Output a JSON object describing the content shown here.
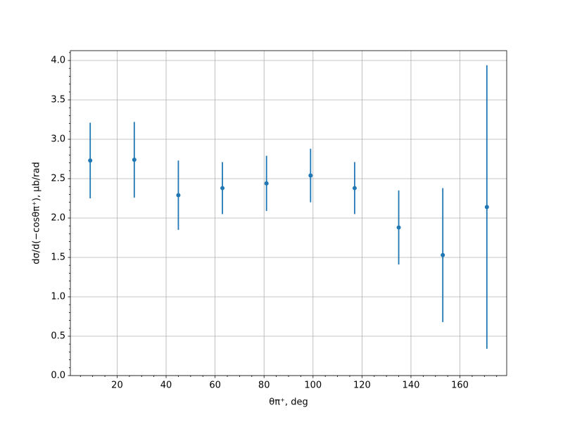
{
  "chart_data": {
    "type": "errorbar",
    "x_label": "θπ⁺, deg",
    "y_label": "dσ/d(−cosθπ⁺), μb/rad",
    "x": [
      9,
      27,
      45,
      63,
      81,
      99,
      117,
      135,
      153,
      171
    ],
    "series": [
      {
        "color": "#1f77b4",
        "values": [
          2.73,
          2.74,
          2.29,
          2.38,
          2.44,
          2.54,
          2.38,
          1.88,
          1.53,
          2.14
        ],
        "errors": [
          0.48,
          0.48,
          0.44,
          0.33,
          0.35,
          0.34,
          0.33,
          0.47,
          0.85,
          1.8
        ]
      }
    ],
    "xlim": [
      0.9,
      179.1
    ],
    "ylim": [
      0,
      4.125
    ],
    "xticks": [
      20,
      40,
      60,
      80,
      100,
      120,
      140,
      160
    ],
    "yticks": [
      {
        "value": 0,
        "label": "0.0"
      },
      0.5,
      {
        "value": 1,
        "label": "1.0"
      },
      1.5,
      {
        "value": 2,
        "label": "2.0"
      },
      2.5,
      {
        "value": 3,
        "label": "3.0"
      },
      3.5,
      {
        "value": 4,
        "label": "4.0"
      }
    ],
    "xminorticks": [
      5,
      10,
      15,
      25,
      30,
      35,
      45,
      50,
      55,
      65,
      70,
      75,
      85,
      90,
      95,
      105,
      110,
      115,
      125,
      130,
      135,
      145,
      150,
      155,
      165,
      170,
      175
    ],
    "yminorticks": [
      0.1,
      0.2,
      0.3,
      0.4,
      0.6,
      0.7,
      0.8,
      0.9,
      1.1,
      1.2,
      1.3,
      1.4,
      1.6,
      1.7,
      1.8,
      1.9,
      2.1,
      2.2,
      2.3,
      2.4,
      2.6,
      2.7,
      2.8,
      2.9,
      3.1,
      3.2,
      3.3,
      3.4,
      3.6,
      3.7,
      3.8,
      3.9,
      4.1
    ],
    "grid": true
  }
}
